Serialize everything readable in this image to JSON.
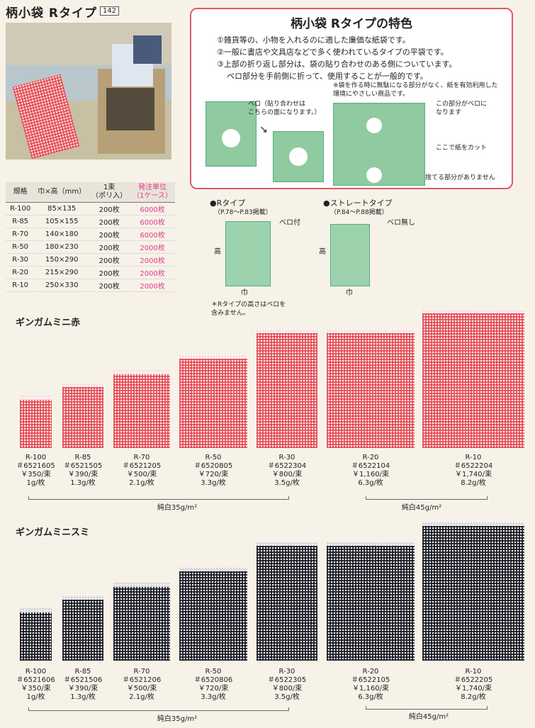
{
  "header": {
    "title": "柄小袋 Rタイプ",
    "page": "142"
  },
  "spec_table": {
    "headers": [
      "規格",
      "巾×高（mm）",
      "1束\n（ポリ入）",
      "発注単位\n（1ケース）"
    ],
    "rows": [
      [
        "R-100",
        "85×135",
        "200枚",
        "6000枚"
      ],
      [
        "R-85",
        "105×155",
        "200枚",
        "6000枚"
      ],
      [
        "R-70",
        "140×180",
        "200枚",
        "6000枚"
      ],
      [
        "R-50",
        "180×230",
        "200枚",
        "2000枚"
      ],
      [
        "R-30",
        "150×290",
        "200枚",
        "2000枚"
      ],
      [
        "R-20",
        "215×290",
        "200枚",
        "2000枚"
      ],
      [
        "R-10",
        "250×330",
        "200枚",
        "2000枚"
      ]
    ]
  },
  "features": {
    "title": "柄小袋 Rタイプの特色",
    "items": [
      "①雑貨等の、小物を入れるのに適した廉価な紙袋です。",
      "②一般に書店や文具店などで多く使われているタイプの平袋です。",
      "③上部の折り返し部分は、袋の貼り合わせのある側についています。",
      "ベロ部分を手前側に折って、使用することが一般的です。"
    ],
    "diagram_note1": "ベロ（貼り合わせは\nこちらの面になります。）",
    "diagram_note2": "※袋を作る時に無駄になる部分がなく、紙を有効利用した\n環境にやさしい商品です。",
    "annot_flap": "この部分がベロに\nなります",
    "annot_cut": "ここで紙をカット",
    "annot_waste": "捨てる部分がありません"
  },
  "types": {
    "r_type": {
      "title": "●Rタイプ",
      "ref": "（P.78〜P.83掲載）",
      "flap": "ベロ付",
      "height": "高",
      "width": "巾"
    },
    "straight": {
      "title": "●ストレートタイプ",
      "ref": "（P.84〜P.88掲載）",
      "flap": "ベロ無し",
      "height": "高",
      "width": "巾"
    },
    "note": "＊Rタイプの高さはベロを\n含みません。"
  },
  "red_section": {
    "title": "ギンガムミニ赤",
    "items": [
      {
        "size": "R-100",
        "code": "＃6521605",
        "price": "￥350/束",
        "weight": "1g/枚"
      },
      {
        "size": "R-85",
        "code": "＃6521505",
        "price": "￥390/束",
        "weight": "1.3g/枚"
      },
      {
        "size": "R-70",
        "code": "＃6521205",
        "price": "￥500/束",
        "weight": "2.1g/枚"
      },
      {
        "size": "R-50",
        "code": "＃6520805",
        "price": "￥720/束",
        "weight": "3.3g/枚"
      },
      {
        "size": "R-30",
        "code": "＃6522304",
        "price": "￥800/束",
        "weight": "3.5g/枚"
      },
      {
        "size": "R-20",
        "code": "＃6522104",
        "price": "￥1,160/束",
        "weight": "6.3g/枚"
      },
      {
        "size": "R-10",
        "code": "＃6522204",
        "price": "￥1,740/束",
        "weight": "8.2g/枚"
      }
    ],
    "paper35": "純白35g/m²",
    "paper45": "純白45g/m²"
  },
  "black_section": {
    "title": "ギンガムミニスミ",
    "items": [
      {
        "size": "R-100",
        "code": "＃6521606",
        "price": "￥350/束",
        "weight": "1g/枚"
      },
      {
        "size": "R-85",
        "code": "＃6521506",
        "price": "￥390/束",
        "weight": "1.3g/枚"
      },
      {
        "size": "R-70",
        "code": "＃6521206",
        "price": "￥500/束",
        "weight": "2.1g/枚"
      },
      {
        "size": "R-50",
        "code": "＃6520806",
        "price": "￥720/束",
        "weight": "3.3g/枚"
      },
      {
        "size": "R-30",
        "code": "＃6522305",
        "price": "￥800/束",
        "weight": "3.5g/枚"
      },
      {
        "size": "R-20",
        "code": "＃6522105",
        "price": "￥1,160/束",
        "weight": "6.3g/枚"
      },
      {
        "size": "R-10",
        "code": "＃6522205",
        "price": "￥1,740/束",
        "weight": "8.2g/枚"
      }
    ],
    "paper35": "純白35g/m²",
    "paper45": "純白45g/m²"
  },
  "colors": {
    "accent_pink": "#e03c8a",
    "frame_red": "#e05a6a",
    "bag_green": "#8fcaa0"
  }
}
